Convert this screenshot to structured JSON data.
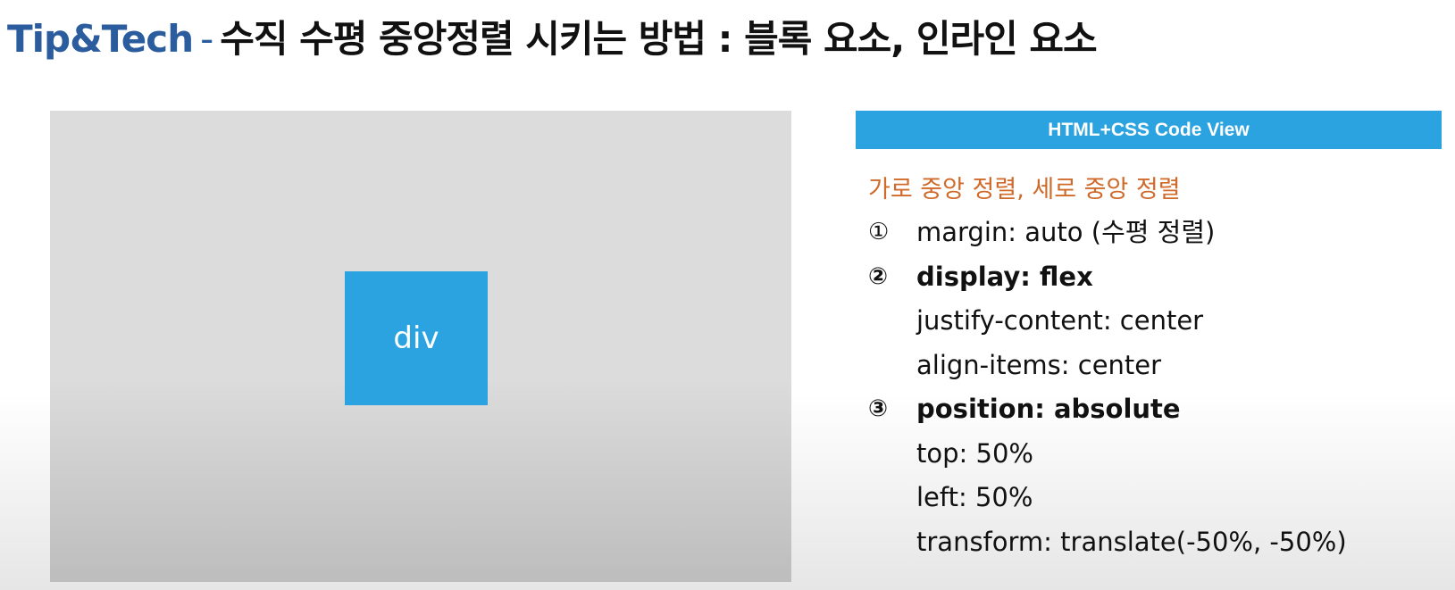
{
  "title": {
    "brand": "Tip&Tech",
    "separator": "-",
    "text": "수직 수평 중앙정렬 시키는 방법 : 블록 요소, 인라인 요소"
  },
  "demo": {
    "box_label": "div"
  },
  "code_view": {
    "header": "HTML+CSS Code View",
    "subtitle": "가로 중앙 정렬, 세로 중앙 정렬",
    "lines": [
      {
        "num": "①",
        "text": "margin: auto (수평 정렬)"
      },
      {
        "num": "②",
        "text": "display: flex"
      },
      {
        "num": "",
        "text": "justify-content: center"
      },
      {
        "num": "",
        "text": "align-items: center"
      },
      {
        "num": "③",
        "text": "position: absolute"
      },
      {
        "num": "",
        "text": "top: 50%"
      },
      {
        "num": "",
        "text": "left: 50%"
      },
      {
        "num": "",
        "text": "transform: translate(-50%, -50%)"
      }
    ]
  },
  "colors": {
    "accent_blue": "#2aa3e0",
    "brand_blue": "#2a5c9e",
    "subtitle_orange": "#d06a2a"
  }
}
